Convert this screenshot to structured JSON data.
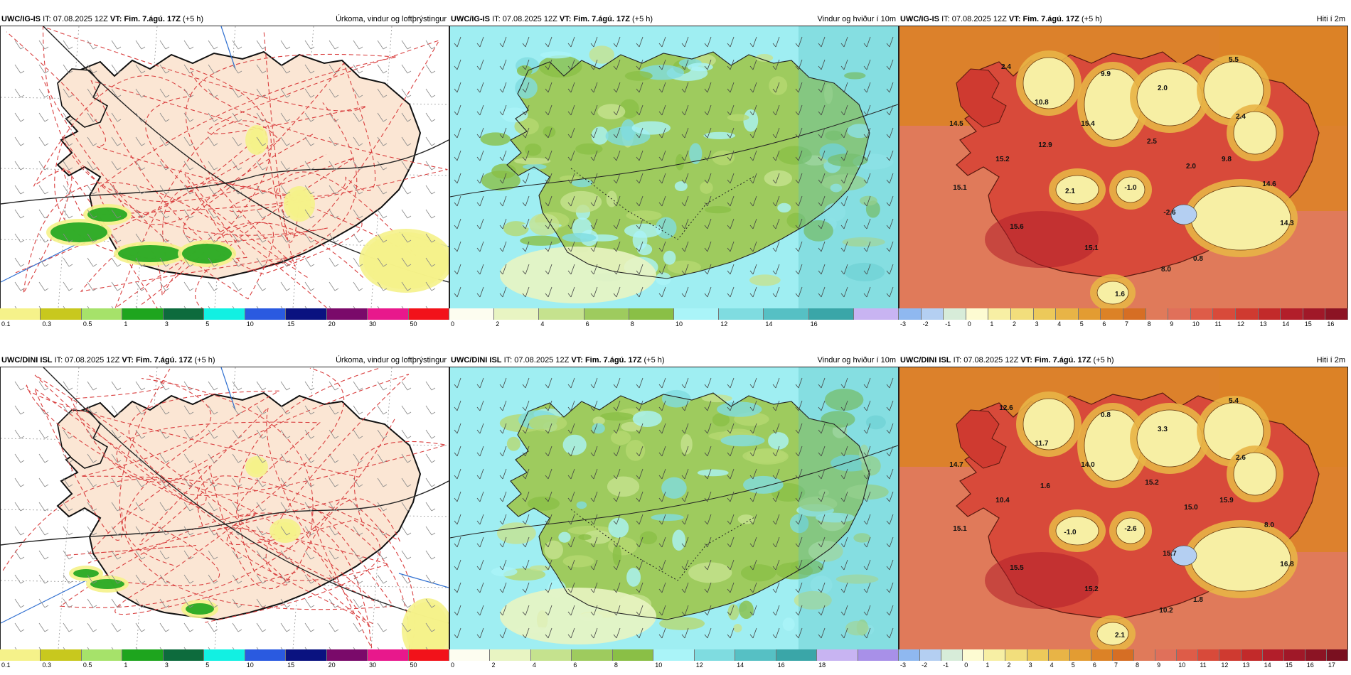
{
  "rows": [
    {
      "model": "UWC/IG-IS",
      "panels": [
        {
          "title": "Úrkoma, vindur og loftþrýstingur",
          "type": "precip"
        },
        {
          "title": "Vindur og hviður í 10m",
          "type": "wind"
        },
        {
          "title": "Hiti í 2m",
          "type": "temp",
          "labels": [
            "2.4",
            "10.8",
            "9.9",
            "2.0",
            "5.5",
            "14.5",
            "15.4",
            "2.4",
            "12.9",
            "2.5",
            "15.2",
            "2.0",
            "9.8",
            "15.1",
            "2.1",
            "-1.0",
            "-2.6",
            "14.6",
            "15.6",
            "15.1",
            "14.3",
            "8.0",
            "0.8",
            "1.6"
          ]
        }
      ]
    },
    {
      "model": "UWC/DINI ISL",
      "panels": [
        {
          "title": "Úrkoma, vindur og loftþrýstingur",
          "type": "precip"
        },
        {
          "title": "Vindur og hviður í 10m",
          "type": "wind"
        },
        {
          "title": "Hiti í 2m",
          "type": "temp",
          "labels": [
            "12.6",
            "11.7",
            "0.8",
            "3.3",
            "5.4",
            "14.7",
            "14.0",
            "2.6",
            "1.6",
            "15.2",
            "10.4",
            "15.0",
            "15.9",
            "15.1",
            "-1.0",
            "-2.6",
            "15.7",
            "8.0",
            "15.5",
            "15.2",
            "16.8",
            "10.2",
            "1.8",
            "2.1"
          ]
        }
      ]
    }
  ],
  "it_label": "IT:",
  "it_value": "07.08.2025 12Z",
  "vt_label": "VT:",
  "vt_value": "Fim. 7.ágú. 17Z",
  "lead": "(+5 h)",
  "precip_scale": {
    "ticks": [
      "0.1",
      "0.3",
      "0.5",
      "1",
      "3",
      "5",
      "10",
      "15",
      "20",
      "30",
      "50"
    ],
    "colors": [
      "#f5f28a",
      "#c8c81e",
      "#a6e26a",
      "#1ea51e",
      "#0d6b3d",
      "#12f0e2",
      "#2a5ae0",
      "#0a1280",
      "#7a0a6a",
      "#e8188c",
      "#f2121a"
    ]
  },
  "wind_scale_top": {
    "ticks": [
      "0",
      "2",
      "4",
      "6",
      "8",
      "10",
      "12",
      "14",
      "16"
    ],
    "colors": [
      "#fdfdf0",
      "#e8f4c2",
      "#c5e28e",
      "#9ecb5e",
      "#8abf46",
      "#aaf4f8",
      "#7fdce0",
      "#56c0c4",
      "#3aa6a8",
      "#c8b4f2"
    ]
  },
  "wind_scale_bottom": {
    "ticks": [
      "0",
      "2",
      "4",
      "6",
      "8",
      "10",
      "12",
      "14",
      "16",
      "18"
    ],
    "colors": [
      "#fdfdf0",
      "#e8f4c2",
      "#c5e28e",
      "#9ecb5e",
      "#8abf46",
      "#aaf4f8",
      "#7fdce0",
      "#56c0c4",
      "#3aa6a8",
      "#c8b4f2",
      "#a890e8"
    ]
  },
  "temp_scale_top": {
    "ticks": [
      "-3",
      "-2",
      "-1",
      "0",
      "1",
      "2",
      "3",
      "4",
      "5",
      "6",
      "7",
      "8",
      "9",
      "10",
      "11",
      "12",
      "13",
      "14",
      "15",
      "16"
    ],
    "colors": [
      "#8fb8f0",
      "#b4cff2",
      "#d7ecd9",
      "#fdfbd2",
      "#f7efa4",
      "#f2de7c",
      "#ecc95a",
      "#e8b446",
      "#e39c32",
      "#dc8226",
      "#d66e24",
      "#e07a5a",
      "#e0705a",
      "#de5c48",
      "#d84a3a",
      "#cf3a30",
      "#c22a2a",
      "#b21e2a",
      "#a01828",
      "#8c1424"
    ]
  },
  "temp_scale_bottom": {
    "ticks": [
      "-3",
      "-2",
      "-1",
      "0",
      "1",
      "2",
      "3",
      "4",
      "5",
      "6",
      "7",
      "8",
      "9",
      "10",
      "11",
      "12",
      "13",
      "14",
      "15",
      "16",
      "17"
    ],
    "colors": [
      "#8fb8f0",
      "#b4cff2",
      "#d7ecd9",
      "#fdfbd2",
      "#f7efa4",
      "#f2de7c",
      "#ecc95a",
      "#e8b446",
      "#e39c32",
      "#dc8226",
      "#d66e24",
      "#e07a5a",
      "#e0705a",
      "#de5c48",
      "#d84a3a",
      "#cf3a30",
      "#c22a2a",
      "#b21e2a",
      "#a01828",
      "#8c1424",
      "#7a1020"
    ]
  }
}
